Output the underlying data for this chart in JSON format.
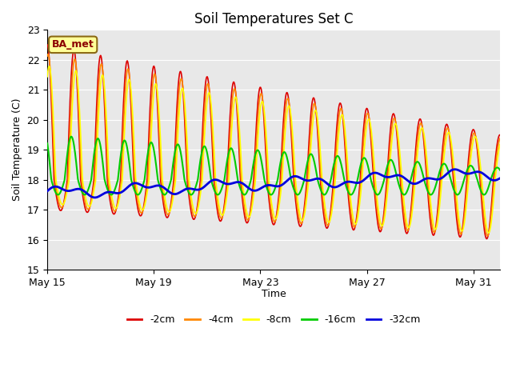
{
  "title": "Soil Temperatures Set C",
  "ylabel": "Soil Temperature (C)",
  "xlabel": "Time",
  "ylim": [
    15.0,
    23.0
  ],
  "yticks": [
    15.0,
    16.0,
    17.0,
    18.0,
    19.0,
    20.0,
    21.0,
    22.0,
    23.0
  ],
  "xtick_labels": [
    "May 15",
    "May 19",
    "May 23",
    "May 27",
    "May 31"
  ],
  "xtick_positions": [
    0,
    4,
    8,
    12,
    16
  ],
  "bg_color": "#e8e8e8",
  "fig_color": "#ffffff",
  "annotation_text": "BA_met",
  "annotation_bg": "#ffff99",
  "annotation_border": "#8B4513",
  "series": [
    {
      "label": "-2cm",
      "color": "#dd0000",
      "lw": 1.2
    },
    {
      "label": "-4cm",
      "color": "#ff8800",
      "lw": 1.2
    },
    {
      "label": "-8cm",
      "color": "#ffff00",
      "lw": 1.2
    },
    {
      "label": "-16cm",
      "color": "#00cc00",
      "lw": 1.5
    },
    {
      "label": "-32cm",
      "color": "#0000dd",
      "lw": 2.0
    }
  ],
  "n_days": 17,
  "pts_per_day": 48,
  "base_temp": 18.0
}
